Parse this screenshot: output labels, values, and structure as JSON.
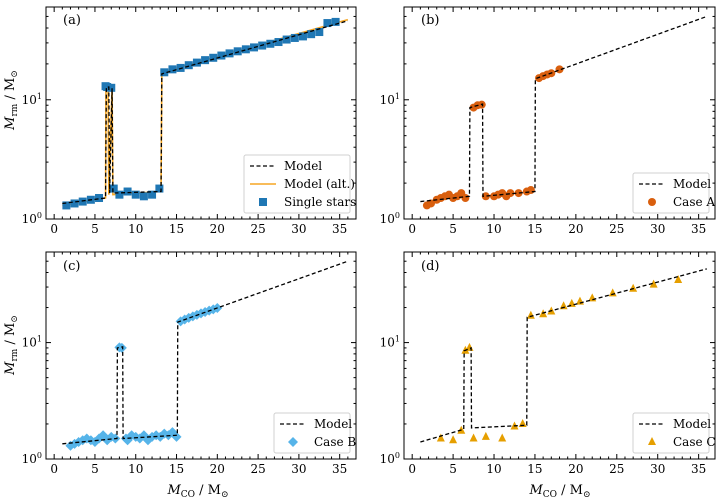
{
  "figure": {
    "ylabel_main": "M",
    "ylabel_sub": "rm",
    "ylabel_unit": " / M",
    "xlabel_main": "M",
    "xlabel_sub": "CO",
    "xlabel_unit": " / M",
    "sun_symbol": "⊙"
  },
  "colors": {
    "model": "#000000",
    "model_alt": "#f5a623",
    "single": "#1f77b4",
    "caseA": "#d95f0e",
    "caseB": "#56b4e9",
    "caseC": "#e69f00"
  },
  "chart_data": [
    {
      "id": "a",
      "label": "(a)",
      "type": "line",
      "xlim": [
        -1,
        37
      ],
      "ylim": [
        1,
        60
      ],
      "yscale": "log",
      "xticks": [
        0,
        5,
        10,
        15,
        20,
        25,
        30,
        35
      ],
      "yticks": [
        {
          "value": 1,
          "label": "10^0"
        },
        {
          "value": 10,
          "label": "10^1"
        }
      ],
      "show_x_ticklabels": true,
      "legend": {
        "position": "lower-right",
        "entries": [
          {
            "label": "Model",
            "kind": "dash",
            "color": "#000000"
          },
          {
            "label": "Model (alt.)",
            "kind": "line",
            "color": "#f5a623"
          },
          {
            "label": "Single stars",
            "kind": "square",
            "color": "#1f77b4"
          }
        ]
      },
      "model_alt": {
        "x": [
          1,
          6.3,
          6.35,
          6.6,
          6.7,
          7.1,
          7.2,
          13.1,
          13.2,
          36
        ],
        "y": [
          1.3,
          1.5,
          13,
          13,
          1.6,
          12.8,
          1.6,
          1.7,
          17,
          47
        ]
      },
      "model": {
        "x": [
          1,
          6.3,
          6.4,
          6.7,
          6.8,
          7.1,
          7.2,
          13.1,
          13.2,
          36
        ],
        "y": [
          1.35,
          1.5,
          12.8,
          12.8,
          1.65,
          12.5,
          1.65,
          1.7,
          16.5,
          46
        ]
      },
      "points": {
        "marker": "square",
        "color": "#1f77b4",
        "x": [
          1.5,
          2.5,
          3.5,
          4.5,
          5.5,
          6.3,
          6.5,
          7.0,
          7.3,
          8.0,
          9.0,
          10.0,
          11.0,
          12.0,
          12.9,
          13.5,
          14.5,
          15.5,
          16.5,
          17.5,
          18.5,
          19.5,
          20.5,
          21.5,
          22.5,
          23.5,
          24.5,
          25.5,
          26.5,
          27.5,
          28.5,
          29.5,
          30.5,
          31.5,
          32.5,
          33.5,
          34.5
        ],
        "y": [
          1.3,
          1.35,
          1.4,
          1.45,
          1.5,
          13.0,
          12.8,
          12.6,
          1.8,
          1.6,
          1.7,
          1.6,
          1.55,
          1.6,
          1.8,
          17,
          18,
          18.5,
          19.5,
          20.5,
          21.5,
          22.5,
          23.5,
          24.5,
          25.5,
          26.5,
          27.5,
          28.5,
          29.5,
          30.5,
          32,
          33,
          34,
          35.5,
          37,
          44,
          45
        ]
      }
    },
    {
      "id": "b",
      "label": "(b)",
      "type": "line",
      "xlim": [
        -1,
        37
      ],
      "ylim": [
        1,
        60
      ],
      "yscale": "log",
      "xticks": [
        0,
        5,
        10,
        15,
        20,
        25,
        30,
        35
      ],
      "yticks": [
        {
          "value": 1,
          "label": "10^0"
        },
        {
          "value": 10,
          "label": "10^1"
        }
      ],
      "show_x_ticklabels": true,
      "legend": {
        "position": "lower-right",
        "entries": [
          {
            "label": "Model",
            "kind": "dash",
            "color": "#000000"
          },
          {
            "label": "Case A",
            "kind": "circle",
            "color": "#d95f0e"
          }
        ]
      },
      "model": {
        "x": [
          1,
          7.0,
          7.05,
          8.6,
          8.65,
          15.0,
          15.05,
          36
        ],
        "y": [
          1.4,
          1.55,
          8.6,
          9.2,
          1.55,
          1.7,
          15,
          50
        ]
      },
      "points": {
        "marker": "circle",
        "color": "#d95f0e",
        "x": [
          1.8,
          2.3,
          3.0,
          3.5,
          4.0,
          4.5,
          5.0,
          5.5,
          6.0,
          6.5,
          7.5,
          8.0,
          8.5,
          9.0,
          10.0,
          10.5,
          11.0,
          11.5,
          12.0,
          13.0,
          14.0,
          14.5,
          15.5,
          16.0,
          16.5,
          17.0,
          18.0
        ],
        "y": [
          1.3,
          1.35,
          1.45,
          1.5,
          1.55,
          1.6,
          1.5,
          1.55,
          1.65,
          1.5,
          8.6,
          9.0,
          9.1,
          1.55,
          1.55,
          1.6,
          1.65,
          1.55,
          1.65,
          1.65,
          1.7,
          1.75,
          15.2,
          15.8,
          16.3,
          16.7,
          18
        ]
      }
    },
    {
      "id": "c",
      "label": "(c)",
      "type": "line",
      "xlim": [
        -1,
        37
      ],
      "ylim": [
        1,
        60
      ],
      "yscale": "log",
      "xticks": [
        0,
        5,
        10,
        15,
        20,
        25,
        30,
        35
      ],
      "yticks": [
        {
          "value": 1,
          "label": "10^0"
        },
        {
          "value": 10,
          "label": "10^1"
        }
      ],
      "show_x_ticklabels": true,
      "legend": {
        "position": "lower-right",
        "entries": [
          {
            "label": "Model",
            "kind": "dash",
            "color": "#000000"
          },
          {
            "label": "Case B",
            "kind": "diamond",
            "color": "#56b4e9"
          }
        ]
      },
      "model": {
        "x": [
          1,
          7.7,
          7.75,
          8.4,
          8.45,
          15.1,
          15.15,
          36
        ],
        "y": [
          1.35,
          1.5,
          9.0,
          9.2,
          1.5,
          1.6,
          15,
          50
        ]
      },
      "points": {
        "marker": "diamond",
        "color": "#56b4e9",
        "x": [
          2.0,
          2.5,
          3.0,
          3.5,
          4.0,
          4.5,
          5.0,
          5.5,
          6.0,
          6.5,
          7.0,
          7.5,
          8.0,
          8.3,
          8.8,
          9.0,
          9.5,
          10.0,
          10.5,
          11.0,
          11.5,
          12.0,
          12.5,
          13.0,
          13.5,
          14.0,
          14.5,
          15.0,
          15.5,
          16.0,
          16.5,
          17.0,
          17.5,
          18.0,
          18.5,
          19.0,
          19.5,
          20.0
        ],
        "y": [
          1.3,
          1.35,
          1.4,
          1.45,
          1.5,
          1.45,
          1.4,
          1.5,
          1.6,
          1.45,
          1.55,
          1.5,
          9.1,
          9.0,
          1.5,
          1.45,
          1.6,
          1.55,
          1.5,
          1.6,
          1.45,
          1.55,
          1.6,
          1.55,
          1.65,
          1.6,
          1.7,
          1.55,
          15.2,
          15.8,
          16.3,
          16.8,
          17.3,
          17.8,
          18.3,
          18.8,
          19.3,
          19.8
        ]
      }
    },
    {
      "id": "d",
      "label": "(d)",
      "type": "line",
      "xlim": [
        -1,
        37
      ],
      "ylim": [
        1,
        60
      ],
      "yscale": "log",
      "xticks": [
        0,
        5,
        10,
        15,
        20,
        25,
        30,
        35
      ],
      "yticks": [
        {
          "value": 1,
          "label": "10^0"
        },
        {
          "value": 10,
          "label": "10^1"
        }
      ],
      "show_x_ticklabels": true,
      "legend": {
        "position": "lower-right",
        "entries": [
          {
            "label": "Model",
            "kind": "dash",
            "color": "#000000"
          },
          {
            "label": "Case C",
            "kind": "triangle",
            "color": "#e69f00"
          }
        ]
      },
      "model": {
        "x": [
          1,
          6.3,
          6.35,
          7.2,
          7.25,
          14.0,
          14.05,
          36
        ],
        "y": [
          1.4,
          1.8,
          8.5,
          9.0,
          1.85,
          1.95,
          16.5,
          43
        ]
      },
      "points": {
        "marker": "triangle",
        "color": "#e69f00",
        "x": [
          3.5,
          5.0,
          6.0,
          6.5,
          7.0,
          7.5,
          9.0,
          11.0,
          12.5,
          13.5,
          14.5,
          16.0,
          17.0,
          18.5,
          19.5,
          20.5,
          22.0,
          24.5,
          27.0,
          29.5,
          32.5
        ],
        "y": [
          1.5,
          1.45,
          1.75,
          8.5,
          9.0,
          1.5,
          1.55,
          1.5,
          1.9,
          2.0,
          17,
          17.5,
          18.5,
          20.5,
          21.5,
          22.5,
          24,
          26.5,
          29,
          31.5,
          34.5
        ]
      }
    }
  ]
}
